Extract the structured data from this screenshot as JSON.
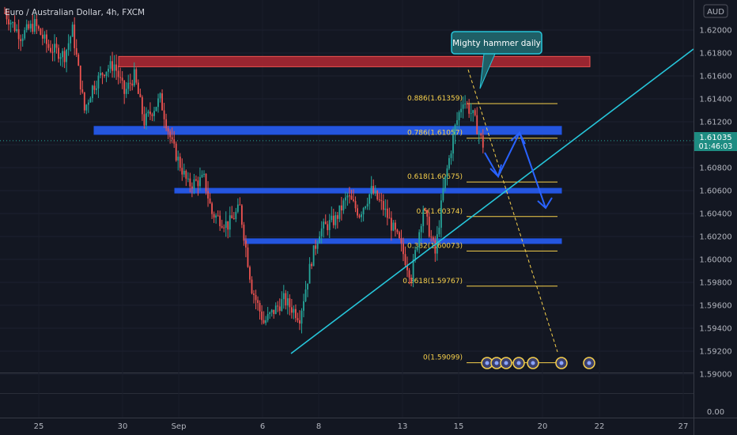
{
  "chart_data": {
    "type": "candlestick",
    "title": "Euro / Australian Dollar, 4h, FXCM",
    "currency_badge": "AUD",
    "price_axis": {
      "ticks": [
        "1.62000",
        "1.61800",
        "1.61600",
        "1.61400",
        "1.61200",
        "1.61000",
        "1.60800",
        "1.60600",
        "1.60400",
        "1.60200",
        "1.60000",
        "1.59800",
        "1.59600",
        "1.59400",
        "1.59200",
        "1.59000"
      ],
      "ylim": [
        1.589,
        1.623
      ],
      "lower_pane_tick": "0.00"
    },
    "time_axis": {
      "labels": [
        "25",
        "30",
        "Sep",
        "6",
        "8",
        "13",
        "15",
        "20",
        "22",
        "27"
      ]
    },
    "current_price": {
      "value": "1.61035",
      "countdown": "01:46:03",
      "price": 1.61035
    },
    "resistance_zone": {
      "low": 1.6168,
      "high": 1.6177,
      "color": "#b22833"
    },
    "support_zones": [
      {
        "low": 1.6109,
        "high": 1.6116,
        "color": "#2962ff"
      },
      {
        "low": 1.6058,
        "high": 1.6062,
        "color": "#2962ff"
      },
      {
        "low": 1.6014,
        "high": 1.6018,
        "color": "#2962ff"
      }
    ],
    "fibonacci": [
      {
        "label": "0.886(1.61359)",
        "price": 1.61359
      },
      {
        "label": "0.786(1.61057)",
        "price": 1.61057
      },
      {
        "label": "0.618(1.60675)",
        "price": 1.60675
      },
      {
        "label": "0.5(1.60374)",
        "price": 1.60374
      },
      {
        "label": "0.382(1.60073)",
        "price": 1.60073
      },
      {
        "label": "0.2618(1.59767)",
        "price": 1.59767
      },
      {
        "label": "0(1.59099)",
        "price": 1.59099
      }
    ],
    "annotation": {
      "text": "Mighty hammer daily"
    },
    "trendline": {
      "color": "#26c6da"
    },
    "colors": {
      "up": "#26a69a",
      "down": "#ef5350",
      "background": "#131722",
      "fib": "#f7d04b",
      "projection": "#2962ff"
    }
  }
}
